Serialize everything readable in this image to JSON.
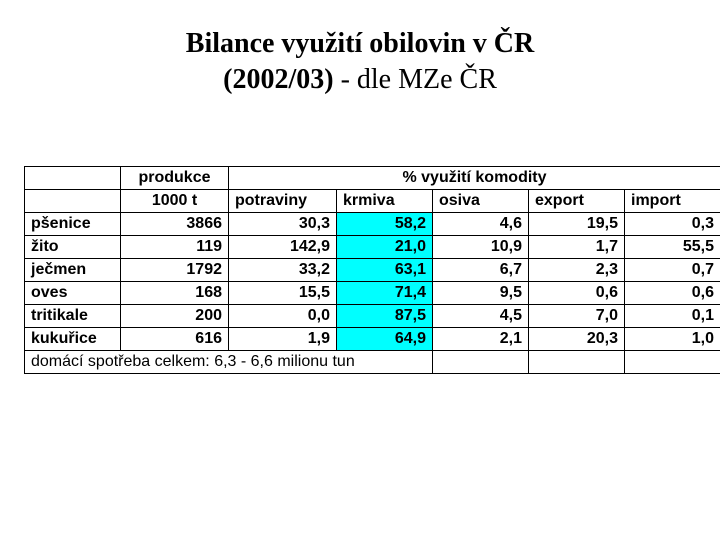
{
  "title": {
    "line1": "Bilance využití obilovin v ČR",
    "line2_bold": "(2002/03)",
    "line2_rest": " - dle MZe ČR"
  },
  "table": {
    "columns": [
      {
        "key": "label",
        "header1": "",
        "header2": ""
      },
      {
        "key": "produkce",
        "header1": "produkce",
        "header2": "1000 t"
      },
      {
        "key": "potraviny",
        "header1_span": "% využití komodity",
        "header2": "potraviny"
      },
      {
        "key": "krmiva",
        "header2": "krmiva"
      },
      {
        "key": "osiva",
        "header2": "osiva"
      },
      {
        "key": "export",
        "header2": "export"
      },
      {
        "key": "import",
        "header2": "import"
      }
    ],
    "highlight_color": "#00ffff",
    "rows": [
      {
        "label": "pšenice",
        "produkce": "3866",
        "potraviny": "30,3",
        "krmiva": "58,2",
        "osiva": "4,6",
        "export": "19,5",
        "import": "0,3"
      },
      {
        "label": "žito",
        "produkce": "119",
        "potraviny": "142,9",
        "krmiva": "21,0",
        "osiva": "10,9",
        "export": "1,7",
        "import": "55,5"
      },
      {
        "label": "ječmen",
        "produkce": "1792",
        "potraviny": "33,2",
        "krmiva": "63,1",
        "osiva": "6,7",
        "export": "2,3",
        "import": "0,7"
      },
      {
        "label": "oves",
        "produkce": "168",
        "potraviny": "15,5",
        "krmiva": "71,4",
        "osiva": "9,5",
        "export": "0,6",
        "import": "0,6"
      },
      {
        "label": "tritikale",
        "produkce": "200",
        "potraviny": "0,0",
        "krmiva": "87,5",
        "osiva": "4,5",
        "export": "7,0",
        "import": "0,1"
      },
      {
        "label": "kukuřice",
        "produkce": "616",
        "potraviny": "1,9",
        "krmiva": "64,9",
        "osiva": "2,1",
        "export": "20,3",
        "import": "1,0"
      }
    ],
    "footer": "domácí spotřeba celkem: 6,3 - 6,6 milionu tun"
  },
  "style": {
    "title_fontsize": 28,
    "cell_fontsize": 16,
    "border_color": "#000000",
    "background_color": "#ffffff",
    "text_color": "#000000"
  }
}
